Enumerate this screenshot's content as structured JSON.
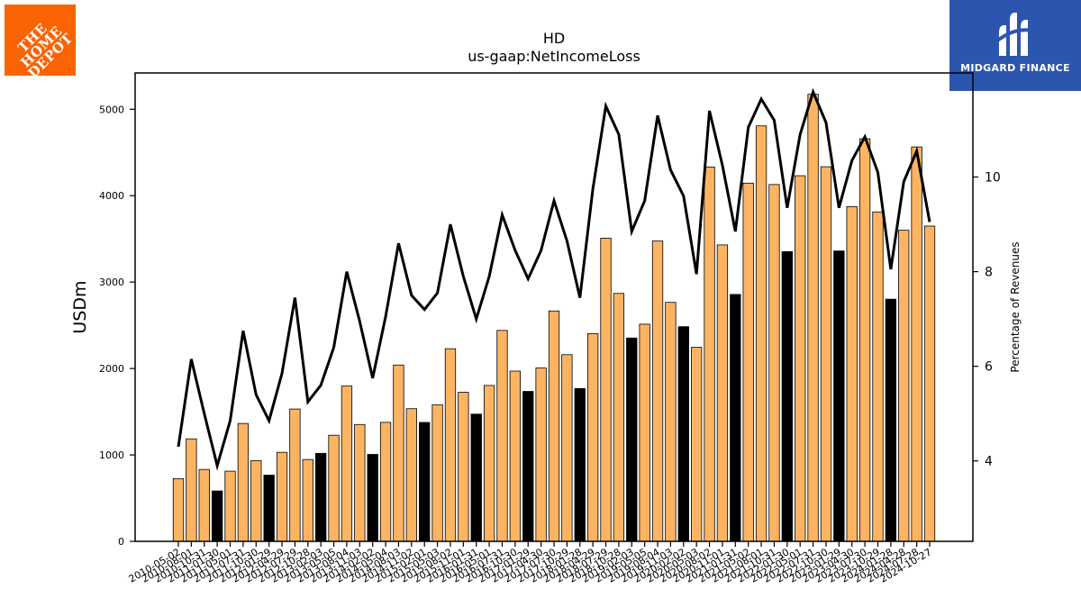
{
  "logos": {
    "left": {
      "text": "THE HOME DEPOT",
      "color": "#f96302"
    },
    "right": {
      "text": "MIDGARD FINANCE",
      "color": "#2c56ad"
    }
  },
  "chart_data": {
    "type": "bar",
    "title": "HD",
    "subtitle": "us-gaap:NetIncomeLoss",
    "ylabel": "USDm",
    "y2label": "Percentage of Revenues",
    "ylim": [
      0,
      5420
    ],
    "y2lim": [
      2.3,
      12.2
    ],
    "yticks": [
      0,
      1000,
      2000,
      3000,
      4000,
      5000
    ],
    "y2ticks": [
      4,
      6,
      8,
      10
    ],
    "grid": false,
    "colors": {
      "bar": "#fdb462",
      "bar_highlight": "#000000",
      "line": "#000000"
    },
    "categories": [
      "2010-05-02",
      "2010-08-01",
      "2010-10-31",
      "2011-01-30",
      "2011-05-01",
      "2011-07-31",
      "2011-10-30",
      "2012-01-29",
      "2012-04-29",
      "2012-07-29",
      "2012-10-28",
      "2013-02-03",
      "2013-05-05",
      "2013-08-04",
      "2013-11-03",
      "2014-02-02",
      "2014-05-04",
      "2014-08-03",
      "2014-11-02",
      "2015-02-01",
      "2015-05-03",
      "2015-08-02",
      "2015-11-01",
      "2016-01-31",
      "2016-05-01",
      "2016-07-31",
      "2016-10-30",
      "2017-01-29",
      "2017-04-30",
      "2017-07-30",
      "2017-10-29",
      "2018-01-28",
      "2018-04-29",
      "2018-07-29",
      "2018-10-28",
      "2019-02-03",
      "2019-05-05",
      "2019-08-04",
      "2019-11-03",
      "2020-02-02",
      "2020-05-03",
      "2020-08-02",
      "2020-11-01",
      "2021-01-31",
      "2021-05-02",
      "2021-08-01",
      "2021-10-31",
      "2022-01-30",
      "2022-05-01",
      "2022-07-31",
      "2022-10-30",
      "2023-01-29",
      "2023-04-30",
      "2023-07-30",
      "2023-10-29",
      "2024-01-28",
      "2024-04-28",
      "2024-07-28",
      "2024-10-27"
    ],
    "series": [
      {
        "kind": "bar",
        "values": [
          726,
          1186,
          832,
          583,
          812,
          1364,
          935,
          766,
          1030,
          1531,
          947,
          1018,
          1228,
          1797,
          1352,
          1006,
          1377,
          2040,
          1535,
          1376,
          1581,
          2229,
          1725,
          1472,
          1804,
          2441,
          1970,
          1735,
          2006,
          2666,
          2160,
          1768,
          2404,
          3508,
          2869,
          2353,
          2513,
          3475,
          2765,
          2484,
          2245,
          4332,
          3430,
          2857,
          4145,
          4808,
          4129,
          3353,
          4231,
          5173,
          4335,
          3360,
          3873,
          4659,
          3812,
          2802,
          3600,
          4564,
          3648
        ],
        "highlight_indices": [
          3,
          7,
          11,
          15,
          19,
          23,
          27,
          31,
          35,
          39,
          43,
          47,
          51,
          55
        ]
      },
      {
        "kind": "line",
        "values": [
          4.3,
          6.15,
          5.0,
          3.9,
          4.85,
          6.75,
          5.4,
          4.85,
          5.85,
          7.45,
          5.25,
          5.6,
          6.4,
          8.0,
          6.95,
          5.75,
          7.05,
          8.6,
          7.5,
          7.2,
          7.55,
          9.0,
          7.9,
          7.0,
          7.9,
          9.2,
          8.45,
          7.85,
          8.45,
          9.5,
          8.65,
          7.45,
          9.75,
          11.5,
          10.9,
          8.85,
          9.5,
          11.3,
          10.15,
          9.6,
          7.95,
          11.4,
          10.25,
          8.85,
          11.05,
          11.65,
          11.2,
          9.35,
          10.9,
          11.8,
          11.15,
          9.35,
          10.35,
          10.85,
          10.1,
          8.05,
          9.9,
          10.55,
          9.05
        ]
      }
    ]
  }
}
